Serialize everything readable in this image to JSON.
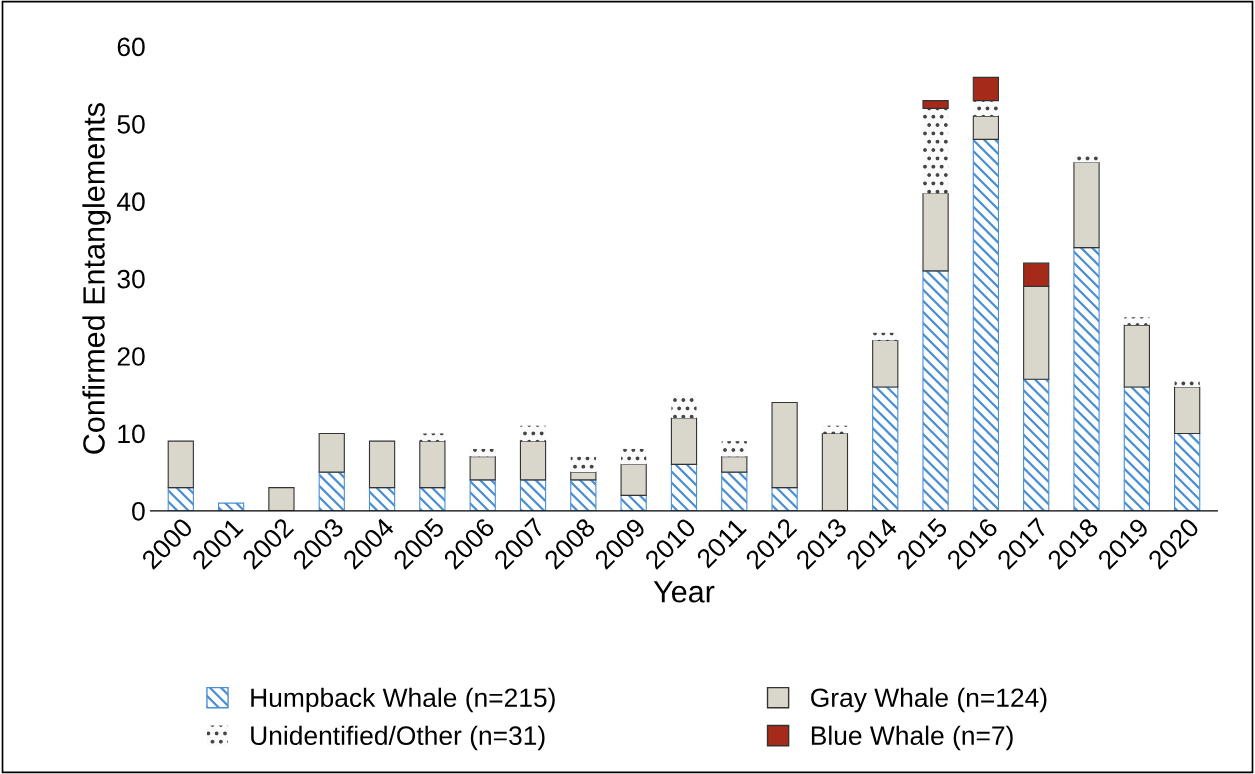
{
  "chart_data": {
    "type": "bar",
    "stacked": true,
    "xlabel": "Year",
    "ylabel": "Confirmed Entanglements",
    "categories": [
      "2000",
      "2001",
      "2002",
      "2003",
      "2004",
      "2005",
      "2006",
      "2007",
      "2008",
      "2009",
      "2010",
      "2011",
      "2012",
      "2013",
      "2014",
      "2015",
      "2016",
      "2017",
      "2018",
      "2019",
      "2020"
    ],
    "series": [
      {
        "name": "Humpback Whale (n=215)",
        "color": "#4a8fd4",
        "values": [
          3,
          1,
          0,
          5,
          3,
          3,
          4,
          4,
          4,
          2,
          6,
          5,
          3,
          0,
          16,
          31,
          48,
          17,
          34,
          16,
          10
        ]
      },
      {
        "name": "Gray Whale (n=124)",
        "color": "#d9d6cb",
        "values": [
          6,
          0,
          3,
          5,
          6,
          6,
          3,
          5,
          1,
          4,
          6,
          2,
          11,
          10,
          6,
          10,
          3,
          12,
          11,
          8,
          6
        ]
      },
      {
        "name": "Unidentified/Other (n=31)",
        "color": "#fbfbfb",
        "values": [
          0,
          0,
          0,
          0,
          0,
          1,
          1,
          2,
          2,
          2,
          3,
          2,
          0,
          1,
          1,
          11,
          2,
          0,
          1,
          1,
          1
        ]
      },
      {
        "name": "Blue Whale (n=7)",
        "color": "#a52a1a",
        "values": [
          0,
          0,
          0,
          0,
          0,
          0,
          0,
          0,
          0,
          0,
          0,
          0,
          0,
          0,
          0,
          1,
          3,
          3,
          0,
          0,
          0
        ]
      }
    ],
    "ylim": [
      0,
      60
    ],
    "yticks": [
      0,
      10,
      20,
      30,
      40,
      50,
      60
    ],
    "grid": false,
    "legend": "bottom"
  }
}
